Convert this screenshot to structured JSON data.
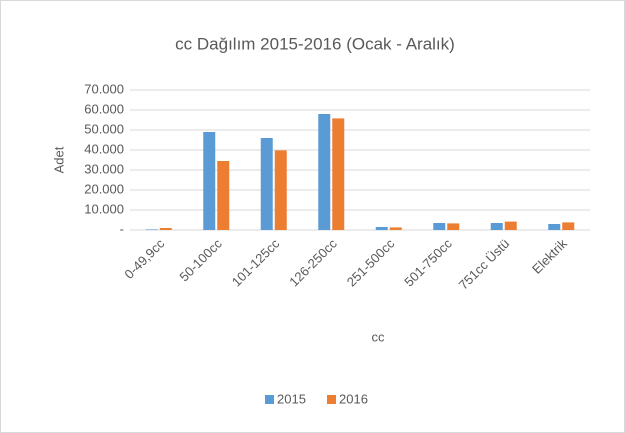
{
  "chart_data": {
    "type": "bar",
    "title": "cc Dağılım 2015-2016 (Ocak - Aralık)",
    "x_label": "cc",
    "y_label": "Adet",
    "categories": [
      "0-49,9cc",
      "50-100cc",
      "101-125cc",
      "126-250cc",
      "251-500cc",
      "501-750cc",
      "751cc Üstü",
      "Elektrik"
    ],
    "series": [
      {
        "name": "2015",
        "color": "#5b9bd5",
        "values": [
          300,
          49000,
          46000,
          58000,
          1500,
          3500,
          3500,
          3000
        ]
      },
      {
        "name": "2016",
        "color": "#ed7d31",
        "values": [
          1000,
          34500,
          39800,
          55800,
          1300,
          3300,
          4200,
          3800
        ]
      }
    ],
    "ylim": [
      0,
      70000
    ],
    "yticks": [
      {
        "value": 0,
        "label": "-"
      },
      {
        "value": 10000,
        "label": "10.000"
      },
      {
        "value": 20000,
        "label": "20.000"
      },
      {
        "value": 30000,
        "label": "30.000"
      },
      {
        "value": 40000,
        "label": "40.000"
      },
      {
        "value": 50000,
        "label": "50.000"
      },
      {
        "value": 60000,
        "label": "60.000"
      },
      {
        "value": 70000,
        "label": "70.000"
      }
    ],
    "grid": true,
    "legend": "bottom"
  }
}
